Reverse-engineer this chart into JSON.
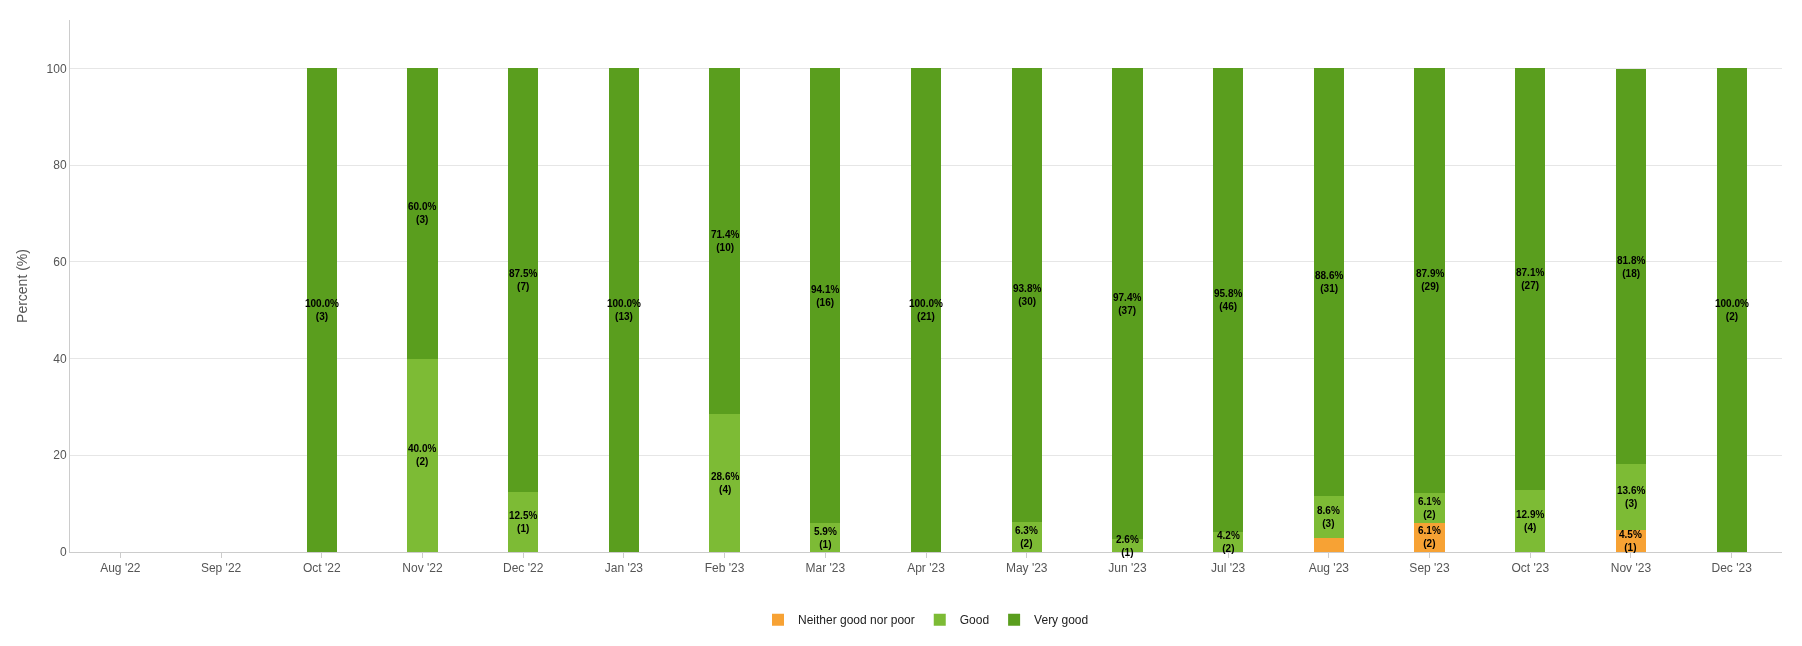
{
  "chart_data": {
    "type": "bar",
    "stacked": true,
    "ylabel": "Percent (%)",
    "ylim": [
      0,
      110
    ],
    "yticks": [
      0,
      20,
      40,
      60,
      80,
      100
    ],
    "grid": "y",
    "legend": "bottom",
    "categories": [
      "Aug '22",
      "Sep '22",
      "Oct '22",
      "Nov '22",
      "Dec '22",
      "Jan '23",
      "Feb '23",
      "Mar '23",
      "Apr '23",
      "May '23",
      "Jun '23",
      "Jul '23",
      "Aug '23",
      "Sep '23",
      "Oct '23",
      "Nov '23",
      "Dec '23"
    ],
    "series": [
      {
        "name": "Neither good nor poor",
        "color": "#f7a234",
        "values": [
          null,
          null,
          null,
          null,
          null,
          null,
          null,
          null,
          null,
          null,
          null,
          null,
          2.9,
          6.1,
          null,
          4.5,
          null
        ],
        "value_labels": [
          null,
          null,
          null,
          null,
          null,
          null,
          null,
          null,
          null,
          null,
          null,
          null,
          null,
          "6.1%\n(2)",
          null,
          "4.5%\n(1)",
          null
        ]
      },
      {
        "name": "Good",
        "color": "#7dbb35",
        "values": [
          null,
          null,
          null,
          40.0,
          12.5,
          null,
          28.6,
          5.9,
          null,
          6.3,
          2.6,
          4.2,
          8.6,
          6.1,
          12.9,
          13.6,
          null
        ],
        "value_labels": [
          null,
          null,
          null,
          "40.0%\n(2)",
          "12.5%\n(1)",
          null,
          "28.6%\n(4)",
          "5.9%\n(1)",
          null,
          "6.3%\n(2)",
          "2.6%\n(1)",
          "4.2%\n(2)",
          "8.6%\n(3)",
          "6.1%\n(2)",
          "12.9%\n(4)",
          "13.6%\n(3)",
          null
        ]
      },
      {
        "name": "Very good",
        "color": "#5a9e1e",
        "values": [
          null,
          null,
          100.0,
          60.0,
          87.5,
          100.0,
          71.4,
          94.1,
          100.0,
          93.8,
          97.4,
          95.8,
          88.6,
          87.9,
          87.1,
          81.8,
          100.0
        ],
        "value_labels": [
          null,
          null,
          "100.0%\n(3)",
          "60.0%\n(3)",
          "87.5%\n(7)",
          "100.0%\n(13)",
          "71.4%\n(10)",
          "94.1%\n(16)",
          "100.0%\n(21)",
          "93.8%\n(30)",
          "97.4%\n(37)",
          "95.8%\n(46)",
          "88.6%\n(31)",
          "87.9%\n(29)",
          "87.1%\n(27)",
          "81.8%\n(18)",
          "100.0%\n(2)"
        ]
      }
    ]
  }
}
